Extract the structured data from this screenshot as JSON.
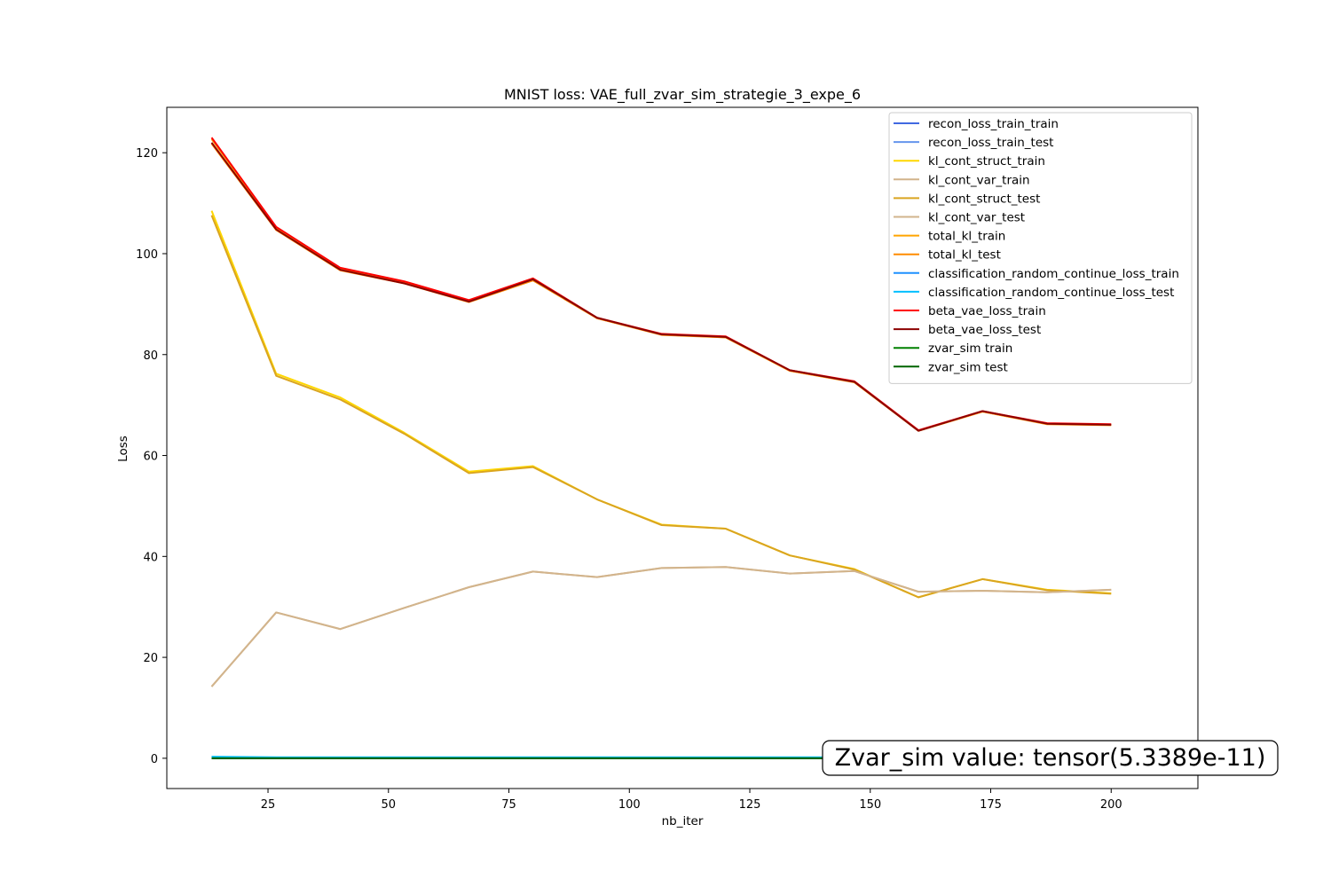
{
  "chart_data": {
    "type": "line",
    "title": "MNIST loss: VAE_full_zvar_sim_strategie_3_expe_6",
    "xlabel": "nb_iter",
    "ylabel": "Loss",
    "xlim": [
      4,
      218
    ],
    "ylim": [
      -6,
      129
    ],
    "xticks": [
      25,
      50,
      75,
      100,
      125,
      150,
      175,
      200
    ],
    "yticks": [
      0,
      20,
      40,
      60,
      80,
      100,
      120
    ],
    "grid": false,
    "legend_position": "top-right",
    "x": [
      13.3,
      26.7,
      40,
      53.3,
      66.7,
      80,
      93.3,
      106.7,
      120,
      133.3,
      146.7,
      160,
      173.3,
      186.7,
      200
    ],
    "series": [
      {
        "name": "recon_loss_train_train",
        "color": "#4169e1",
        "values": [
          0,
          0,
          0,
          0,
          0,
          0,
          0,
          0,
          0,
          0,
          0,
          0,
          0,
          0,
          0
        ]
      },
      {
        "name": "recon_loss_train_test",
        "color": "#6495ed",
        "values": [
          0,
          0,
          0,
          0,
          0,
          0,
          0,
          0,
          0,
          0,
          0,
          0,
          0,
          0,
          0
        ]
      },
      {
        "name": "kl_cont_struct_train",
        "color": "#ffd700",
        "values": [
          108.5,
          76.2,
          71.5,
          64.5,
          56.8,
          57.9,
          51.3,
          46.3,
          45.5,
          40.2,
          37.5,
          31.9,
          35.5,
          33.4,
          32.7
        ]
      },
      {
        "name": "kl_cont_var_train",
        "color": "#d2b48c",
        "values": [
          14.2,
          28.9,
          25.6,
          29.8,
          33.9,
          37.0,
          35.9,
          37.7,
          37.9,
          36.6,
          37.1,
          33.0,
          33.2,
          32.9,
          33.4
        ]
      },
      {
        "name": "kl_cont_struct_test",
        "color": "#daa520",
        "values": [
          107.6,
          75.8,
          71.1,
          64.3,
          56.5,
          57.7,
          51.3,
          46.2,
          45.5,
          40.2,
          37.4,
          31.9,
          35.5,
          33.3,
          32.6
        ]
      },
      {
        "name": "kl_cont_var_test",
        "color": "#d2b48c",
        "values": [
          14.2,
          28.9,
          25.6,
          29.8,
          33.9,
          37.0,
          35.9,
          37.7,
          37.9,
          36.6,
          37.1,
          33.0,
          33.2,
          32.9,
          33.4
        ]
      },
      {
        "name": "total_kl_train",
        "color": "#ffa500",
        "values": [
          122.7,
          105.1,
          97.1,
          94.3,
          90.7,
          94.9,
          87.2,
          84.0,
          83.4,
          76.8,
          74.6,
          64.9,
          68.7,
          66.3,
          66.1
        ]
      },
      {
        "name": "total_kl_test",
        "color": "#ff8c00",
        "values": [
          121.8,
          104.7,
          96.7,
          94.1,
          90.4,
          94.7,
          87.2,
          83.9,
          83.4,
          76.8,
          74.5,
          64.9,
          68.7,
          66.2,
          66.0
        ]
      },
      {
        "name": "classification_random_continue_loss_train",
        "color": "#1e90ff",
        "values": [
          0.2,
          0.1,
          0.1,
          0.1,
          0.1,
          0.1,
          0.1,
          0.1,
          0.1,
          0.1,
          0.1,
          0.1,
          0.1,
          0.1,
          0.1
        ]
      },
      {
        "name": "classification_random_continue_loss_test",
        "color": "#00bfff",
        "values": [
          0.3,
          0.2,
          0.2,
          0.2,
          0.2,
          0.2,
          0.2,
          0.2,
          0.2,
          0.2,
          0.2,
          0.2,
          0.2,
          0.2,
          0.2
        ]
      },
      {
        "name": "beta_vae_loss_train",
        "color": "#ff0000",
        "values": [
          123.0,
          105.3,
          97.2,
          94.5,
          90.8,
          95.1,
          87.3,
          84.1,
          83.6,
          76.9,
          74.7,
          65.0,
          68.8,
          66.4,
          66.2
        ]
      },
      {
        "name": "beta_vae_loss_test",
        "color": "#8b0000",
        "values": [
          122.0,
          104.8,
          96.8,
          94.1,
          90.5,
          94.9,
          87.3,
          84.0,
          83.5,
          76.9,
          74.6,
          64.9,
          68.8,
          66.3,
          66.1
        ]
      },
      {
        "name": "zvar_sim train",
        "color": "#008000",
        "values": [
          0,
          0,
          0,
          0,
          0,
          0,
          0,
          0,
          0,
          0,
          0,
          0,
          0,
          0,
          0
        ]
      },
      {
        "name": "zvar_sim test",
        "color": "#006400",
        "values": [
          0,
          0,
          0,
          0,
          0,
          0,
          0,
          0,
          0,
          0,
          0,
          0,
          0,
          0,
          0
        ]
      }
    ],
    "annotation": {
      "text": "Zvar_sim value: tensor(5.3389e-11)",
      "position": "bottom-right"
    }
  }
}
